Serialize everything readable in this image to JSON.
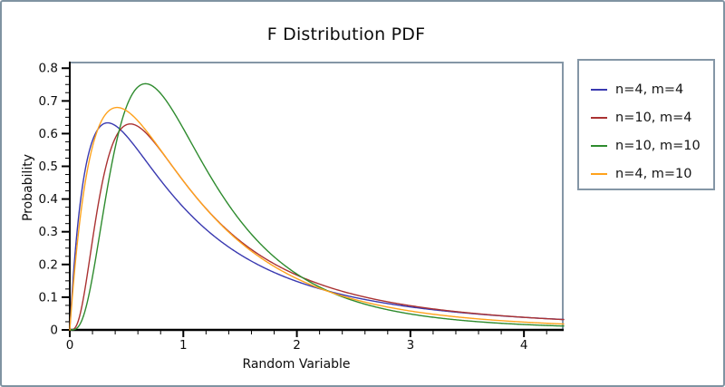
{
  "title": "F Distribution PDF",
  "chart_data": {
    "type": "line",
    "title": "F Distribution PDF",
    "xlabel": "Random Variable",
    "ylabel": "Probability",
    "xlim": [
      0,
      4.35
    ],
    "ylim": [
      0,
      0.82
    ],
    "x_major_ticks": [
      0,
      1,
      2,
      3,
      4
    ],
    "x_tick_labels": [
      "0",
      "1",
      "2",
      "3",
      "4"
    ],
    "x_minor_step": 0.2,
    "y_major_ticks": [
      0,
      0.1,
      0.2,
      0.3,
      0.4,
      0.5,
      0.6,
      0.7,
      0.8
    ],
    "y_tick_labels": [
      "0",
      "0.1",
      "0.2",
      "0.3",
      "0.4",
      "0.5",
      "0.6",
      "0.7",
      "0.8"
    ],
    "y_minor_step": 0.025,
    "grid": false,
    "legend_position": "outside-right",
    "axis_color": "#000000",
    "frame_color": "#8496a6",
    "sample_x": [
      0.02,
      0.05,
      0.1,
      0.15,
      0.2,
      0.25,
      0.3,
      0.35,
      0.4,
      0.45,
      0.5,
      0.6,
      0.7,
      0.8,
      0.9,
      1.0,
      1.2,
      1.4,
      1.6,
      1.8,
      2.0,
      2.5,
      3.0,
      3.5,
      4.0,
      4.35
    ],
    "series": [
      {
        "label": "n=4, m=4",
        "n": 4,
        "m": 4,
        "color": "#3939b0",
        "peak": {
          "x": 0.333,
          "y": 0.633
        },
        "values": [
          0.1109,
          0.2468,
          0.4098,
          0.5146,
          0.5787,
          0.6144,
          0.6302,
          0.6322,
          0.6247,
          0.6108,
          0.5926,
          0.5493,
          0.5029,
          0.4572,
          0.4144,
          0.375,
          0.3074,
          0.2532,
          0.2101,
          0.1757,
          0.1481,
          0.1,
          0.0703,
          0.0512,
          0.0384,
          0.0319
        ]
      },
      {
        "label": "n=10, m=4",
        "n": 10,
        "m": 4,
        "color": "#aa3232",
        "peak": {
          "x": 0.533,
          "y": 0.63
        },
        "values": [
          0.0003,
          0.008,
          0.0614,
          0.1596,
          0.2744,
          0.3825,
          0.4721,
          0.5396,
          0.5859,
          0.6139,
          0.6272,
          0.6221,
          0.5914,
          0.5487,
          0.5019,
          0.4554,
          0.3708,
          0.3012,
          0.2458,
          0.202,
          0.1675,
          0.1087,
          0.074,
          0.0525,
          0.0385,
          0.0315
        ]
      },
      {
        "label": "n=10, m=10",
        "n": 10,
        "m": 10,
        "color": "#2e8b2e",
        "peak": {
          "x": 0.667,
          "y": 0.753
        },
        "values": [
          0.0001,
          0.0024,
          0.0243,
          0.0788,
          0.1628,
          0.2642,
          0.3702,
          0.4702,
          0.5576,
          0.6288,
          0.6828,
          0.7426,
          0.7503,
          0.7227,
          0.6742,
          0.6152,
          0.4918,
          0.3817,
          0.291,
          0.2233,
          0.1707,
          0.0892,
          0.0487,
          0.0278,
          0.0165,
          0.0117
        ]
      },
      {
        "label": "n=4, m=10",
        "n": 4,
        "m": 10,
        "color": "#ffa21c",
        "peak": {
          "x": 0.417,
          "y": 0.679
        },
        "values": [
          0.0908,
          0.2083,
          0.3638,
          0.4789,
          0.5586,
          0.6158,
          0.6497,
          0.6714,
          0.6775,
          0.678,
          0.6698,
          0.6372,
          0.5954,
          0.5486,
          0.5008,
          0.4554,
          0.3694,
          0.2981,
          0.2401,
          0.1935,
          0.1568,
          0.0938,
          0.0577,
          0.0366,
          0.0239,
          0.018
        ]
      }
    ]
  }
}
